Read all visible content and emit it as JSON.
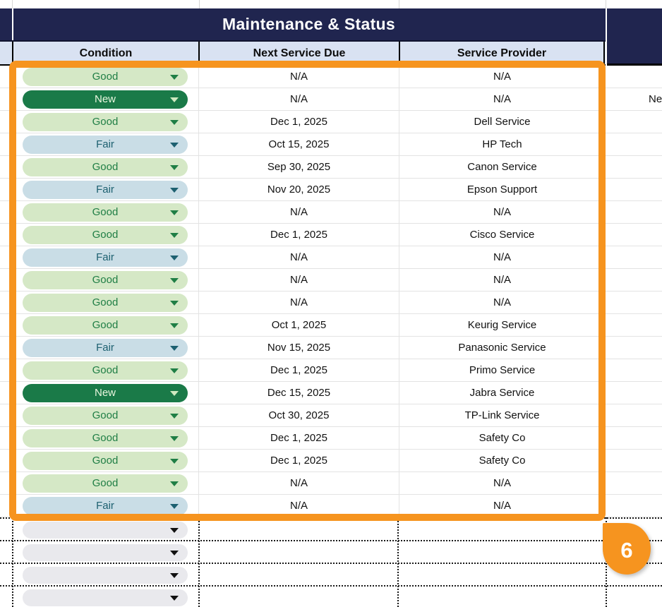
{
  "title": "Maintenance & Status",
  "columns": [
    "Condition",
    "Next Service Due",
    "Service Provider"
  ],
  "rows": [
    {
      "condition": "Good",
      "variant": "good",
      "due": "N/A",
      "provider": "N/A"
    },
    {
      "condition": "New",
      "variant": "new",
      "due": "N/A",
      "provider": "N/A",
      "right_overflow_text": "Ne"
    },
    {
      "condition": "Good",
      "variant": "good",
      "due": "Dec 1, 2025",
      "provider": "Dell Service"
    },
    {
      "condition": "Fair",
      "variant": "fair",
      "due": "Oct 15, 2025",
      "provider": "HP Tech"
    },
    {
      "condition": "Good",
      "variant": "good",
      "due": "Sep 30, 2025",
      "provider": "Canon Service"
    },
    {
      "condition": "Fair",
      "variant": "fair",
      "due": "Nov 20, 2025",
      "provider": "Epson Support"
    },
    {
      "condition": "Good",
      "variant": "good",
      "due": "N/A",
      "provider": "N/A"
    },
    {
      "condition": "Good",
      "variant": "good",
      "due": "Dec 1, 2025",
      "provider": "Cisco Service"
    },
    {
      "condition": "Fair",
      "variant": "fair",
      "due": "N/A",
      "provider": "N/A"
    },
    {
      "condition": "Good",
      "variant": "good",
      "due": "N/A",
      "provider": "N/A"
    },
    {
      "condition": "Good",
      "variant": "good",
      "due": "N/A",
      "provider": "N/A"
    },
    {
      "condition": "Good",
      "variant": "good",
      "due": "Oct 1, 2025",
      "provider": "Keurig Service"
    },
    {
      "condition": "Fair",
      "variant": "fair",
      "due": "Nov 15, 2025",
      "provider": "Panasonic Service"
    },
    {
      "condition": "Good",
      "variant": "good",
      "due": "Dec 1, 2025",
      "provider": "Primo Service"
    },
    {
      "condition": "New",
      "variant": "new",
      "due": "Dec 15, 2025",
      "provider": "Jabra Service"
    },
    {
      "condition": "Good",
      "variant": "good",
      "due": "Oct 30, 2025",
      "provider": "TP-Link Service"
    },
    {
      "condition": "Good",
      "variant": "good",
      "due": "Dec 1, 2025",
      "provider": "Safety Co"
    },
    {
      "condition": "Good",
      "variant": "good",
      "due": "Dec 1, 2025",
      "provider": "Safety Co"
    },
    {
      "condition": "Good",
      "variant": "good",
      "due": "N/A",
      "provider": "N/A"
    },
    {
      "condition": "Fair",
      "variant": "fair",
      "due": "N/A",
      "provider": "N/A"
    }
  ],
  "empty_dropdown_rows": 4,
  "annotation": {
    "badge": "6"
  },
  "colors": {
    "band_navy": "#20254f",
    "header_blue": "#d9e2f2",
    "annotation_orange": "#f6941f",
    "good_bg": "#d5e8c6",
    "good_text": "#1f7e45",
    "new_bg": "#1a7a48",
    "new_text": "#e9f6de",
    "fair_bg": "#c9dde6",
    "fair_text": "#1d6070",
    "empty_pill_bg": "#e9e9ed"
  }
}
